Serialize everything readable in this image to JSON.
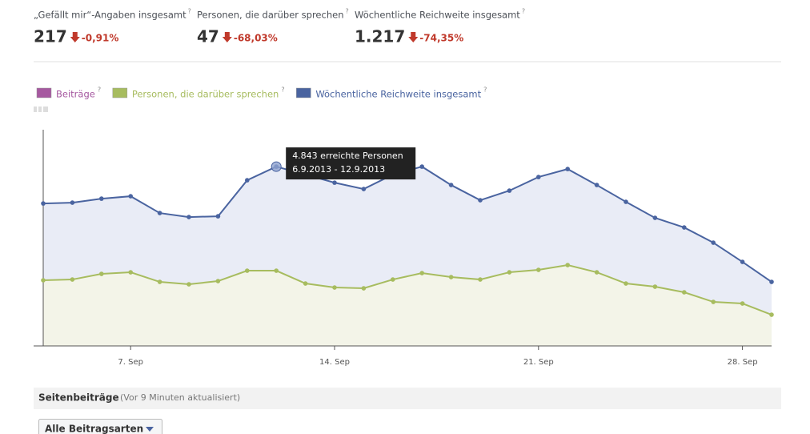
{
  "stats": [
    {
      "label": "„Gefällt mir“-Angaben insgesamt",
      "value": "217",
      "change": "-0,91%"
    },
    {
      "label": "Personen, die darüber sprechen",
      "value": "47",
      "change": "-68,03%"
    },
    {
      "label": "Wöchentliche Reichweite insgesamt",
      "value": "1.217",
      "change": "-74,35%"
    }
  ],
  "chart_data": {
    "type": "line",
    "legend_extra": {
      "name": "Beiträge",
      "color": "#a659a0"
    },
    "categories": [
      null,
      null,
      null,
      "7. Sep",
      null,
      null,
      null,
      null,
      null,
      null,
      "14. Sep",
      null,
      null,
      null,
      null,
      null,
      null,
      "21. Sep",
      null,
      null,
      null,
      null,
      null,
      null,
      "28. Sep",
      null
    ],
    "series": [
      {
        "name": "Personen, die darüber sprechen",
        "color": "#a7bc5f",
        "fill": "#f3f4e8",
        "values": [
          1773,
          1794,
          1946,
          1989,
          1730,
          1665,
          1751,
          2032,
          2032,
          1686,
          1578,
          1557,
          1794,
          1967,
          1859,
          1794,
          1989,
          2054,
          2184,
          1989,
          1686,
          1600,
          1449,
          1189,
          1146,
          843
        ]
      },
      {
        "name": "Wöchentliche Reichweite insgesamt",
        "color": "#4a64a0",
        "fill": "#e9ecf6",
        "values": [
          3848,
          3870,
          3978,
          4043,
          3589,
          3481,
          3502,
          4475,
          4843,
          4627,
          4410,
          4238,
          4627,
          4843,
          4346,
          3935,
          4194,
          4562,
          4778,
          4346,
          3892,
          3459,
          3200,
          2789,
          2270,
          1730
        ]
      }
    ],
    "ylim": [
      0,
      5840
    ],
    "tooltip": {
      "series": 1,
      "index": 8,
      "lines": [
        "4.843 erreichte Personen",
        "6.9.2013 - 12.9.2013"
      ]
    }
  },
  "posts": {
    "title": "Seitenbeiträge",
    "note": "(Vor 9 Minuten aktualisiert)",
    "filter": "Alle Beitragsarten"
  }
}
